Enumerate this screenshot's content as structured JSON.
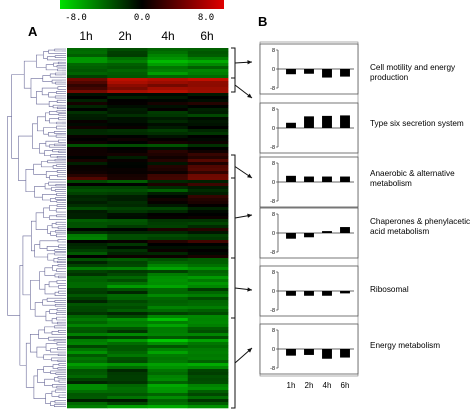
{
  "panel_a_letter": "A",
  "panel_b_letter": "B",
  "colorbar": {
    "labels": [
      "-8.0",
      "0.0",
      "8.0"
    ],
    "low_color": "#00e000",
    "mid_color": "#000000",
    "high_color": "#e00000"
  },
  "heatmap": {
    "columns": [
      "1h",
      "2h",
      "4h",
      "6h"
    ]
  },
  "chart_data": {
    "type": "bar",
    "categories": [
      "1h",
      "2h",
      "4h",
      "6h"
    ],
    "ylim": [
      -8,
      8
    ],
    "yticks": [
      "8",
      "0",
      "-8"
    ],
    "panels": [
      {
        "label": "Cell motility and energy production",
        "values": [
          -2.2,
          -2.0,
          -3.6,
          -3.2
        ]
      },
      {
        "label": "Type six secretion system",
        "values": [
          2.2,
          4.9,
          5.1,
          5.3
        ]
      },
      {
        "label": "Anaerobic & alternative metabolism",
        "values": [
          2.6,
          2.3,
          2.3,
          2.3
        ]
      },
      {
        "label": "Chaperones & phenylacetic acid metabolism",
        "values": [
          -2.4,
          -1.8,
          0.8,
          2.5
        ]
      },
      {
        "label": "Ribosomal",
        "values": [
          -2.0,
          -2.0,
          -2.0,
          -1.0
        ]
      },
      {
        "label": "Energy metabolism",
        "values": [
          -2.8,
          -2.5,
          -4.1,
          -3.6
        ]
      }
    ]
  }
}
